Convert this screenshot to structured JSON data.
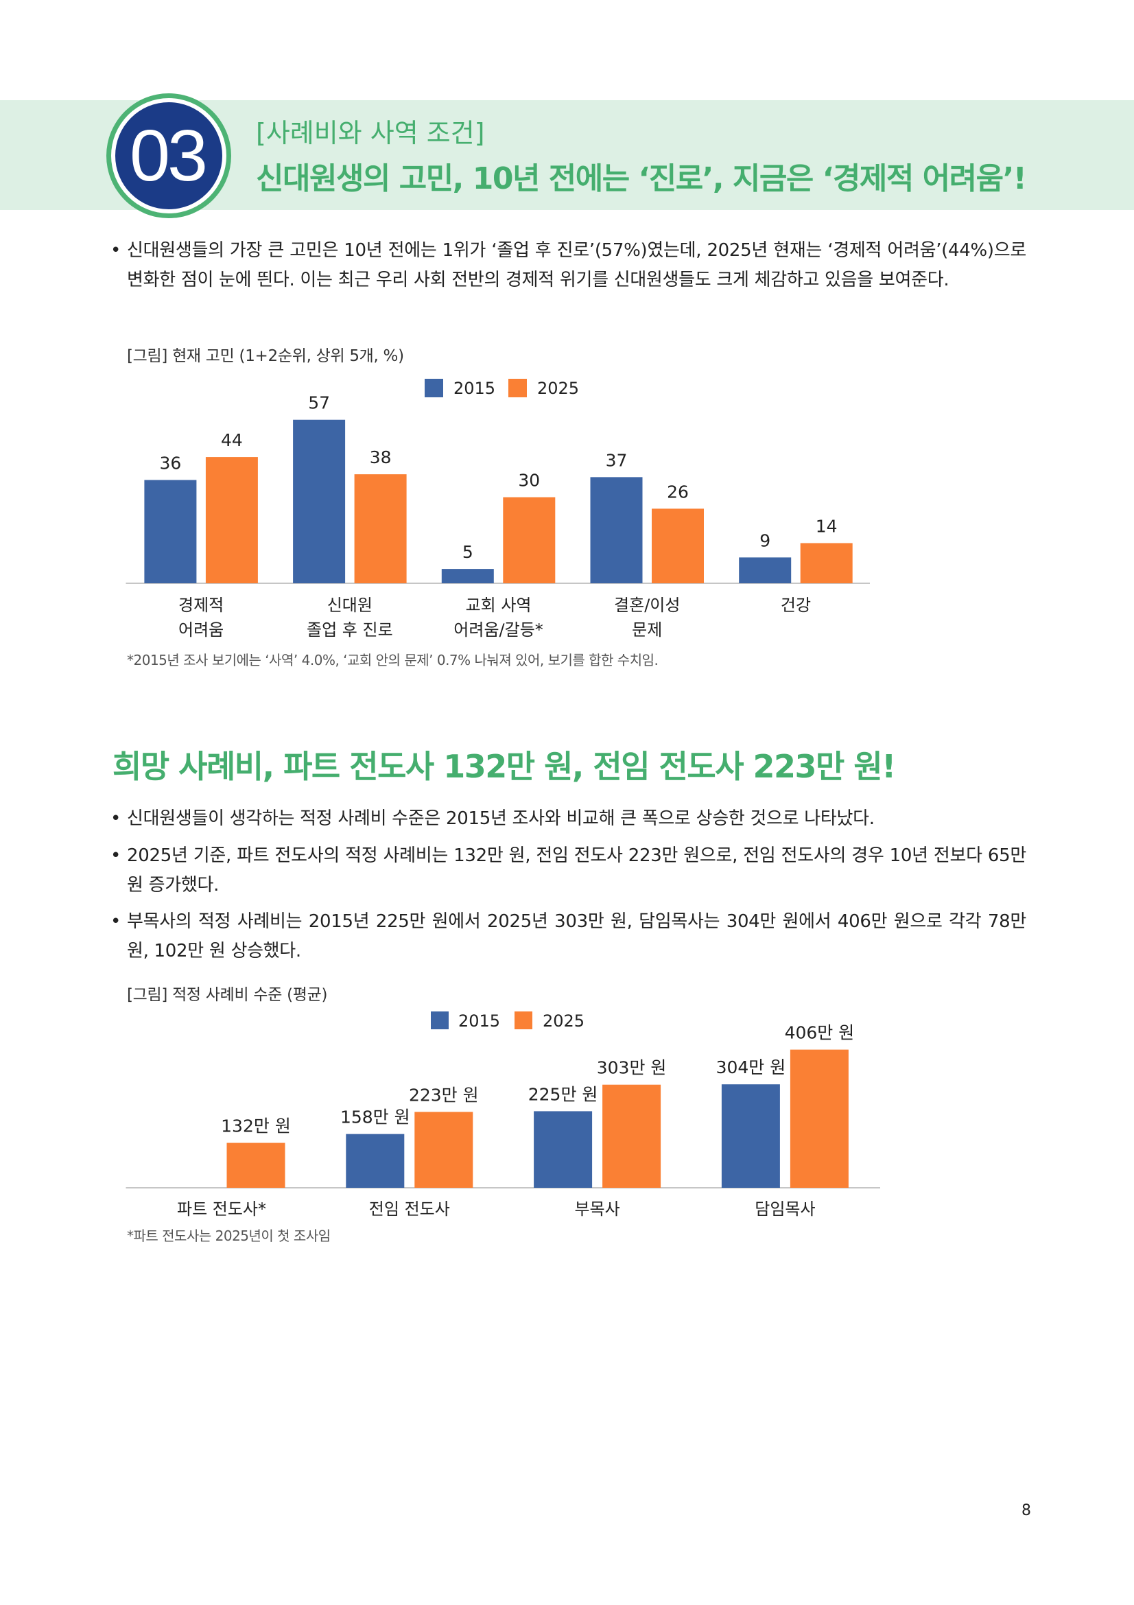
{
  "header": {
    "section_number": "03",
    "subtitle": "[사례비와 사역 조건]",
    "title": "신대원생의 고민, 10년 전에는 ‘진로’, 지금은 ‘경제적 어려움’!"
  },
  "section1": {
    "bullets": [
      "신대원생들의 가장 큰 고민은 10년 전에는 1위가 ‘졸업 후 진로’(57%)였는데, 2025년 현재는 ‘경제적 어려움’(44%)으로 변화한 점이 눈에 띈다. 이는 최근 우리 사회 전반의 경제적 위기를 신대원생들도 크게 체감하고 있음을 보여준다."
    ]
  },
  "section2": {
    "heading": "희망 사례비, 파트 전도사 132만 원, 전임 전도사 223만 원!",
    "bullets": [
      "신대원생들이 생각하는 적정 사례비 수준은 2015년 조사와 비교해 큰 폭으로 상승한 것으로 나타났다.",
      "2025년 기준, 파트 전도사의 적정 사례비는 132만 원, 전임 전도사 223만 원으로, 전임 전도사의 경우 10년 전보다 65만 원 증가했다.",
      "부목사의 적정 사례비는 2015년 225만 원에서 2025년 303만 원, 담임목사는 304만 원에서 406만 원으로 각각 78만 원, 102만 원 상승했다."
    ]
  },
  "chart_data": [
    {
      "type": "bar",
      "title": "[그림] 현재 고민 (1+2순위, 상위 5개, %)",
      "categories": [
        [
          "경제적",
          "어려움"
        ],
        [
          "신대원",
          "졸업 후 진로"
        ],
        [
          "교회 사역",
          "어려움/갈등*"
        ],
        [
          "결혼/이성",
          "문제"
        ],
        [
          "건강"
        ]
      ],
      "series": [
        {
          "name": "2015",
          "color": "#3d65a5",
          "values": [
            36,
            57,
            5,
            37,
            9
          ]
        },
        {
          "name": "2025",
          "color": "#fa8034",
          "values": [
            44,
            38,
            30,
            26,
            14
          ]
        }
      ],
      "y_axis_shown": false,
      "grid": false,
      "legend": "top-center",
      "note": "*2015년 조사 보기에는 ‘사역’ 4.0%, ‘교회 안의 문제’ 0.7% 나눠져 있어, 보기를 합한 수치임."
    },
    {
      "type": "bar",
      "title": "[그림] 적정 사례비 수준 (평균)",
      "categories": [
        "파트 전도사*",
        "전임 전도사",
        "부목사",
        "담임목사"
      ],
      "value_unit": "만 원",
      "series": [
        {
          "name": "2015",
          "color": "#3d65a5",
          "values": [
            null,
            158,
            225,
            304
          ]
        },
        {
          "name": "2025",
          "color": "#fa8034",
          "values": [
            132,
            223,
            303,
            406
          ]
        }
      ],
      "y_axis_shown": false,
      "grid": false,
      "legend": "top-center",
      "note": "*파트 전도사는 2025년이 첫 조사임"
    }
  ],
  "colors": {
    "accent_green": "#45ae6e",
    "header_band": "#ddf0e4",
    "badge_navy": "#1b3b87"
  },
  "page_number": "8"
}
